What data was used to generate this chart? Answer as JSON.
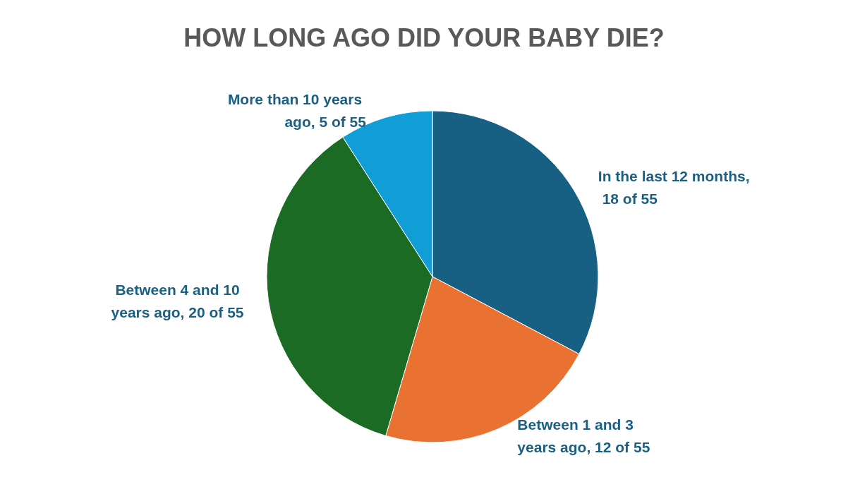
{
  "chart_data": {
    "type": "pie",
    "title": "HOW LONG AGO DID YOUR BABY DIE?",
    "categories": [
      "In the last 12 months, 18 of 55",
      "Between 1 and 3 years ago, 12 of 55",
      "Between 4 and 10 years ago, 20 of 55",
      "More than 10 years ago, 5 of 55"
    ],
    "values": [
      18,
      12,
      20,
      5
    ],
    "colors": [
      "#176083",
      "#e97132",
      "#1b6b24",
      "#119dd6"
    ],
    "legend": false
  }
}
